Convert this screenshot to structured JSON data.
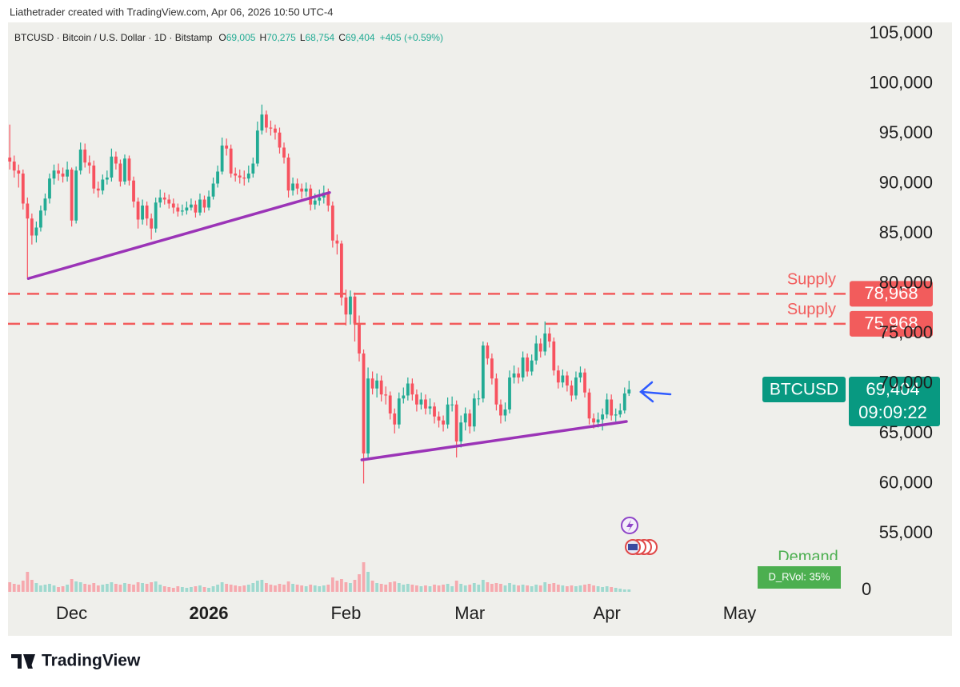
{
  "chart_data": {
    "type": "candlestick",
    "header": "Liathetrader created with TradingView.com, Apr 06, 2026 10:50 UTC-4",
    "legend": {
      "symbol": "BTCUSD · Bitcoin / U.S. Dollar · 1D · Bitstamp",
      "ohlc": [
        {
          "key": "O",
          "value": 69005,
          "label": "69,005"
        },
        {
          "key": "H",
          "value": 70275,
          "label": "70,275"
        },
        {
          "key": "L",
          "value": 68754,
          "label": "68,754"
        },
        {
          "key": "C",
          "value": 69404,
          "label": "69,404"
        }
      ],
      "change": "+405 (+0.59%)"
    },
    "up_color": "#22ab94",
    "down_color": "#f7525f",
    "volume_up_color": "#9fd9cf",
    "volume_down_color": "#f6a9ae",
    "open": [
      92600,
      92200,
      91300,
      91000,
      88000,
      86500,
      84800,
      85600,
      87300,
      88500,
      90500,
      91300,
      91000,
      90700,
      91400,
      86300,
      91300,
      93400,
      92100,
      91800,
      89500,
      89300,
      90400,
      90600,
      92700,
      92000,
      90200,
      92500,
      90300,
      88200,
      86400,
      87800,
      86500,
      85500,
      88100,
      88600,
      88400,
      88000,
      87600,
      87200,
      87300,
      87600,
      87900,
      87100,
      88400,
      87600,
      88700,
      90000,
      91200,
      93800,
      93500,
      91000,
      90800,
      90600,
      90500,
      91000,
      92000,
      95300,
      96900,
      95600,
      95500,
      95100,
      93600,
      92600,
      89300,
      90000,
      89500,
      89200,
      89500,
      87900,
      88300,
      88600,
      89100,
      87800,
      84300,
      84000,
      78600,
      76900,
      78700,
      76000,
      73000,
      63000,
      70500,
      69500,
      70300,
      68900,
      68800,
      67000,
      65900,
      68500,
      68800,
      70000,
      68900,
      67900,
      68400,
      67500,
      67700,
      66700,
      66300,
      65900,
      67900,
      67900,
      64200,
      66100,
      67000,
      65700,
      68500,
      68500,
      73800,
      72500,
      70500,
      67900,
      66800,
      67400,
      70600,
      71000,
      70600,
      72600,
      71200,
      72300,
      74000,
      73200,
      75000,
      74200,
      71300,
      70100,
      70800,
      69800,
      68800,
      70600,
      71100,
      69100,
      66500,
      66100,
      66400,
      66900,
      68400,
      66800,
      66900,
      67300,
      69005
    ],
    "high": [
      95900,
      92800,
      91900,
      91400,
      88600,
      87000,
      86200,
      87800,
      89000,
      91000,
      91900,
      92000,
      91600,
      92200,
      91600,
      91700,
      94100,
      94000,
      92800,
      92300,
      90200,
      90900,
      91300,
      93500,
      93200,
      92400,
      92900,
      92800,
      90700,
      88600,
      88400,
      88200,
      87000,
      88600,
      89400,
      89100,
      88900,
      88500,
      88000,
      87900,
      88200,
      88500,
      88300,
      89000,
      88800,
      89300,
      90600,
      91800,
      94600,
      94500,
      93900,
      91600,
      91400,
      91300,
      91800,
      92600,
      96200,
      97900,
      97300,
      96300,
      95900,
      95600,
      94100,
      93000,
      90600,
      90500,
      90000,
      90100,
      89900,
      89000,
      89400,
      89800,
      89500,
      88200,
      84900,
      84300,
      79400,
      79300,
      79100,
      76800,
      73400,
      71600,
      71200,
      71000,
      70800,
      69700,
      69200,
      67500,
      69100,
      69600,
      70600,
      70500,
      69400,
      69100,
      68900,
      68500,
      68100,
      67200,
      66800,
      68600,
      68700,
      68300,
      66800,
      67600,
      67400,
      69000,
      69300,
      74200,
      74100,
      73000,
      71000,
      68400,
      68100,
      71300,
      71800,
      71600,
      73200,
      73000,
      72900,
      74800,
      74500,
      76200,
      75600,
      74600,
      71800,
      71400,
      71200,
      70300,
      71200,
      71700,
      71500,
      69500,
      67000,
      67100,
      67500,
      69000,
      68900,
      67500,
      68000,
      69600,
      70275
    ],
    "low": [
      91400,
      90600,
      89600,
      87400,
      80600,
      83900,
      84100,
      85200,
      86800,
      88000,
      89900,
      90300,
      90100,
      90200,
      85700,
      86000,
      90900,
      91600,
      91000,
      89000,
      88600,
      88900,
      89900,
      90200,
      91400,
      89700,
      89900,
      89800,
      87600,
      85500,
      85900,
      85800,
      84400,
      85100,
      87600,
      87900,
      87500,
      87000,
      86700,
      86800,
      86900,
      87300,
      86600,
      86800,
      87100,
      87300,
      88400,
      89600,
      90900,
      92800,
      90600,
      90200,
      90000,
      89800,
      90100,
      90600,
      91700,
      94900,
      95100,
      94800,
      94400,
      93000,
      92000,
      88600,
      88800,
      88900,
      88500,
      88700,
      87300,
      87400,
      87800,
      88000,
      87200,
      83600,
      82900,
      77800,
      75800,
      75900,
      74200,
      72200,
      60000,
      62600,
      68900,
      68600,
      68200,
      67900,
      66400,
      65000,
      65500,
      68000,
      68300,
      68300,
      67200,
      67400,
      66900,
      66900,
      66000,
      65600,
      65200,
      65500,
      67200,
      62600,
      63600,
      65300,
      65000,
      65200,
      67800,
      68100,
      71900,
      69900,
      67300,
      66000,
      66200,
      67000,
      70000,
      70000,
      70200,
      70700,
      70800,
      71900,
      72600,
      72800,
      73600,
      70800,
      69500,
      69600,
      69200,
      68200,
      68400,
      70100,
      68600,
      65900,
      65500,
      65600,
      65300,
      66500,
      66300,
      66200,
      66600,
      67000,
      68754
    ],
    "close": [
      92200,
      91300,
      91000,
      88000,
      86500,
      84800,
      85600,
      87300,
      88500,
      90500,
      91300,
      91000,
      90700,
      91400,
      86300,
      91300,
      93400,
      92100,
      91800,
      89500,
      89300,
      90400,
      90600,
      92700,
      92000,
      90200,
      92500,
      90300,
      88200,
      86400,
      87800,
      86500,
      85500,
      88100,
      88600,
      88400,
      88000,
      87600,
      87200,
      87300,
      87600,
      87900,
      87100,
      88400,
      87600,
      88700,
      90000,
      91200,
      93800,
      93500,
      91000,
      90800,
      90600,
      90500,
      91000,
      92000,
      95300,
      96900,
      95600,
      95500,
      95100,
      93600,
      92600,
      89300,
      90000,
      89500,
      89200,
      89500,
      87900,
      88300,
      88600,
      89100,
      87800,
      84300,
      84000,
      78600,
      76900,
      78700,
      76000,
      73000,
      63000,
      70500,
      69500,
      70300,
      68900,
      68800,
      67000,
      65900,
      68500,
      68800,
      70000,
      68900,
      67900,
      68400,
      67500,
      67700,
      66700,
      66300,
      65900,
      67900,
      67900,
      64200,
      66100,
      67000,
      65700,
      68500,
      68500,
      73800,
      72500,
      70500,
      67900,
      66800,
      67400,
      70600,
      71000,
      70600,
      72600,
      71200,
      72300,
      74000,
      73200,
      75000,
      74200,
      71300,
      70100,
      70800,
      69800,
      68800,
      70600,
      71100,
      69100,
      66500,
      66100,
      66400,
      66900,
      68400,
      66800,
      66900,
      67300,
      69005,
      69404
    ],
    "volume": [
      12,
      10,
      9,
      14,
      25,
      15,
      11,
      8,
      9,
      10,
      8,
      6,
      7,
      9,
      16,
      13,
      12,
      10,
      9,
      11,
      8,
      9,
      10,
      12,
      10,
      9,
      11,
      10,
      9,
      12,
      11,
      10,
      12,
      13,
      9,
      7,
      6,
      5,
      7,
      6,
      5,
      6,
      7,
      8,
      6,
      5,
      7,
      9,
      12,
      10,
      9,
      8,
      7,
      8,
      9,
      11,
      14,
      15,
      11,
      9,
      8,
      10,
      9,
      13,
      10,
      9,
      8,
      7,
      9,
      8,
      7,
      8,
      9,
      18,
      14,
      16,
      12,
      11,
      15,
      22,
      37,
      25,
      14,
      11,
      10,
      9,
      12,
      13,
      11,
      9,
      10,
      9,
      8,
      7,
      8,
      7,
      9,
      8,
      9,
      10,
      7,
      14,
      10,
      8,
      9,
      11,
      9,
      15,
      12,
      10,
      11,
      10,
      8,
      11,
      9,
      8,
      9,
      8,
      7,
      9,
      8,
      12,
      10,
      11,
      9,
      8,
      7,
      8,
      7,
      8,
      9,
      10,
      8,
      7,
      6,
      7,
      6,
      5,
      4,
      3,
      3
    ],
    "xlim": [
      -0.4,
      189.5
    ],
    "xticks": [
      {
        "value": 14,
        "label": "Dec"
      },
      {
        "value": 45,
        "label": "2026",
        "bold": true
      },
      {
        "value": 76,
        "label": "Feb"
      },
      {
        "value": 104,
        "label": "Mar"
      },
      {
        "value": 135,
        "label": "Apr"
      },
      {
        "value": 165,
        "label": "May"
      }
    ],
    "ylim": [
      45160,
      106120
    ],
    "yticks": [
      {
        "value": 55000,
        "label": "55,000"
      },
      {
        "value": 60000,
        "label": "60,000"
      },
      {
        "value": 65000,
        "label": "65,000"
      },
      {
        "value": 70000,
        "label": "70,000"
      },
      {
        "value": 75000,
        "label": "75,000"
      },
      {
        "value": 80000,
        "label": "80,000"
      },
      {
        "value": 85000,
        "label": "85,000"
      },
      {
        "value": 90000,
        "label": "90,000"
      },
      {
        "value": 95000,
        "label": "95,000"
      },
      {
        "value": 100000,
        "label": "100,000"
      },
      {
        "value": 105000,
        "label": "105,000"
      }
    ],
    "volume_ylim": [
      0,
      40
    ],
    "volume_yticks": [
      0
    ],
    "levels": [
      {
        "name": "Supply",
        "value": 78968,
        "label": "78,968",
        "color": "#f25c5c"
      },
      {
        "name": "Supply",
        "value": 75968,
        "label": "75,968",
        "color": "#f25c5c"
      }
    ],
    "trendlines": [
      {
        "color": "#9b34b7",
        "points": [
          [
            4.2,
            80500
          ],
          [
            72.3,
            89100
          ]
        ]
      },
      {
        "color": "#9b34b7",
        "points": [
          [
            79.6,
            62360
          ],
          [
            139.4,
            66200
          ]
        ]
      }
    ],
    "price_tag": {
      "symbol": "BTCUSD",
      "value": 69404,
      "label": "69,404",
      "countdown": "09:09:22",
      "color": "#089981"
    },
    "demand": "Demand",
    "indicator": "D_RVol: 35%",
    "footer": "TradingView"
  }
}
